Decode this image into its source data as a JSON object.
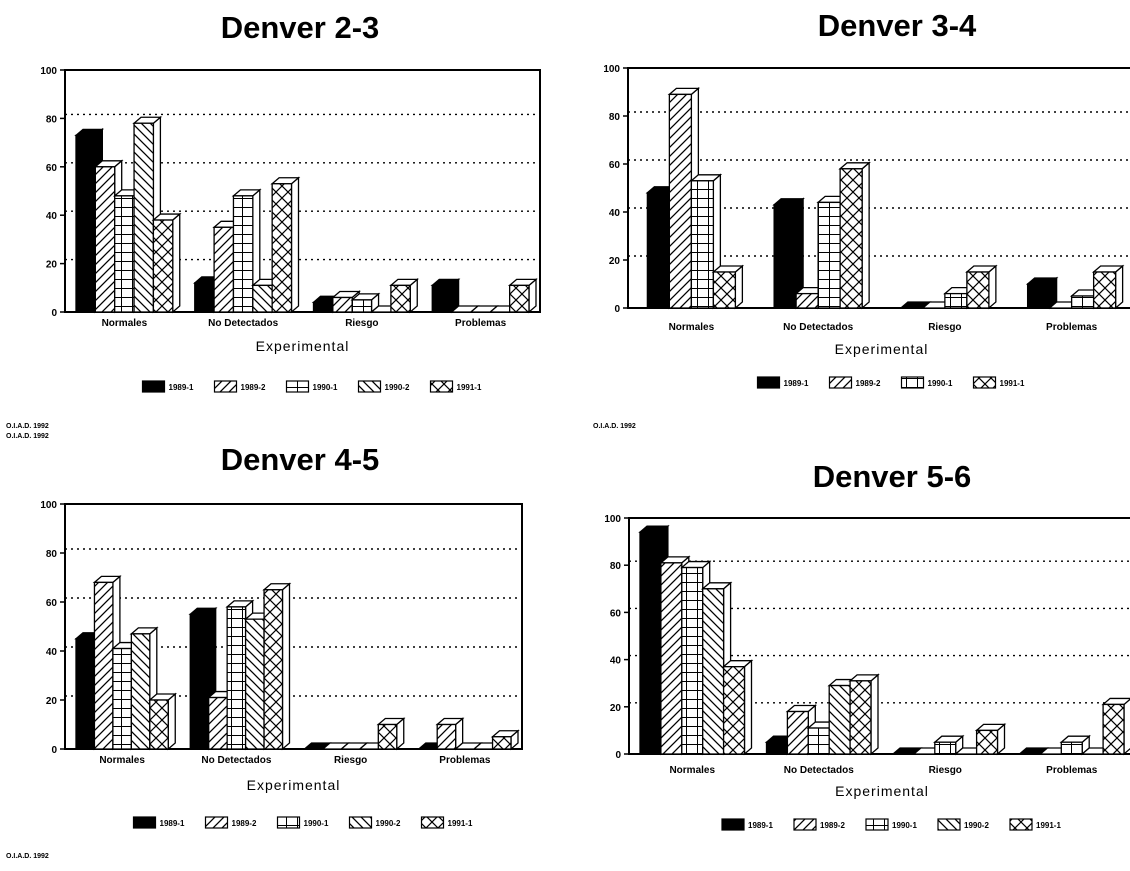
{
  "series_names": [
    "1989-1",
    "1989-2",
    "1990-1",
    "1990-2",
    "1991-1"
  ],
  "chart_data": [
    {
      "type": "bar",
      "title": "Denver 2-3",
      "xlabel": "Experimental",
      "ylabel": "",
      "ylim": [
        0,
        100
      ],
      "yticks": [
        0,
        20,
        40,
        60,
        80,
        100
      ],
      "grid": "dotted horizontal",
      "legend": "bottom",
      "categories": [
        "Normales",
        "No Detectados",
        "Riesgo",
        "Problemas"
      ],
      "series": [
        {
          "name": "1989-1",
          "values": [
            73,
            12,
            4,
            11
          ]
        },
        {
          "name": "1989-2",
          "values": [
            60,
            35,
            6,
            0
          ]
        },
        {
          "name": "1990-1",
          "values": [
            48,
            48,
            5,
            0
          ]
        },
        {
          "name": "1990-2",
          "values": [
            78,
            11,
            0,
            0
          ]
        },
        {
          "name": "1991-1",
          "values": [
            38,
            53,
            11,
            11
          ]
        }
      ],
      "legend_labels": [
        "1989-1",
        "1989-2",
        "1990-1",
        "1990-2",
        "1991-1"
      ],
      "credit": "O.I.A.D. 1992"
    },
    {
      "type": "bar",
      "title": "Denver 3-4",
      "xlabel": "Experimental",
      "ylabel": "",
      "ylim": [
        0,
        100
      ],
      "yticks": [
        0,
        20,
        40,
        60,
        80,
        100
      ],
      "grid": "dotted horizontal",
      "legend": "bottom",
      "categories": [
        "Normales",
        "No Detectados",
        "Riesgo",
        "Problemas"
      ],
      "series": [
        {
          "name": "1989-1",
          "values": [
            48,
            43,
            0,
            10
          ]
        },
        {
          "name": "1989-2",
          "values": [
            89,
            6,
            0,
            0
          ]
        },
        {
          "name": "1990-1",
          "values": [
            53,
            44,
            6,
            5
          ]
        },
        {
          "name": "1991-1",
          "values": [
            15,
            58,
            15,
            15
          ]
        }
      ],
      "legend_labels": [
        "1989-1",
        "1989-2",
        "1990-1",
        "1991-1"
      ],
      "credit": "O.I.A.D. 1992"
    },
    {
      "type": "bar",
      "title": "Denver 4-5",
      "xlabel": "Experimental",
      "ylabel": "",
      "ylim": [
        0,
        100
      ],
      "yticks": [
        0,
        20,
        40,
        60,
        80,
        100
      ],
      "grid": "dotted horizontal",
      "legend": "bottom",
      "categories": [
        "Normales",
        "No Detectados",
        "Riesgo",
        "Problemas"
      ],
      "series": [
        {
          "name": "1989-1",
          "values": [
            45,
            55,
            0,
            0
          ]
        },
        {
          "name": "1989-2",
          "values": [
            68,
            21,
            0,
            10
          ]
        },
        {
          "name": "1990-1",
          "values": [
            41,
            58,
            0,
            0
          ]
        },
        {
          "name": "1990-2",
          "values": [
            47,
            53,
            0,
            0
          ]
        },
        {
          "name": "1991-1",
          "values": [
            20,
            65,
            10,
            5
          ]
        }
      ],
      "legend_labels": [
        "1989-1",
        "1989-2",
        "1990-1",
        "1990-2",
        "1991-1"
      ],
      "credit": "O.I.A.D. 1992"
    },
    {
      "type": "bar",
      "title": "Denver 5-6",
      "xlabel": "Experimental",
      "ylabel": "",
      "ylim": [
        0,
        100
      ],
      "yticks": [
        0,
        20,
        40,
        60,
        80,
        100
      ],
      "grid": "dotted horizontal",
      "legend": "bottom",
      "categories": [
        "Normales",
        "No Detectados",
        "Riesgo",
        "Problemas"
      ],
      "series": [
        {
          "name": "1989-1",
          "values": [
            94,
            5,
            0,
            0
          ]
        },
        {
          "name": "1989-2",
          "values": [
            81,
            18,
            0,
            0
          ]
        },
        {
          "name": "1990-1",
          "values": [
            79,
            11,
            5,
            5
          ]
        },
        {
          "name": "1990-2",
          "values": [
            70,
            29,
            0,
            0
          ]
        },
        {
          "name": "1991-1",
          "values": [
            37,
            31,
            10,
            21
          ]
        }
      ],
      "legend_labels": [
        "1989-1",
        "1989-2",
        "1990-1",
        "1990-2",
        "1991-1"
      ],
      "credit": ""
    }
  ],
  "page_credit": "O.I.A.D. 1992"
}
